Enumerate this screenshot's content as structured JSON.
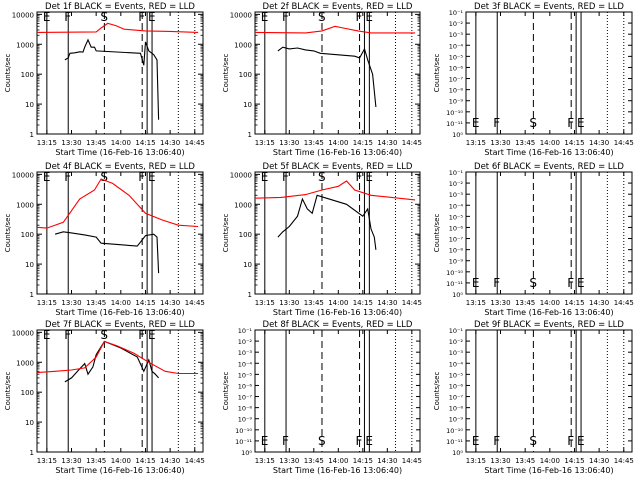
{
  "colors": {
    "events": "#000000",
    "lld": "#ff0000",
    "background": "#ffffff"
  },
  "shared": {
    "xlabel": "Start Time (16-Feb-16 13:06:40)",
    "ylabel": "Counts/sec",
    "x_range": [
      "13:09",
      "14:50"
    ],
    "x_ticks": [
      "13:15",
      "13:30",
      "13:45",
      "14:00",
      "14:15",
      "14:30",
      "14:45"
    ],
    "log_y_ticks": [
      "1",
      "10",
      "100",
      "1000",
      "10000"
    ],
    "log_y_range": [
      1,
      12000
    ],
    "linear_y_ticks": [
      "10⁻¹",
      "10⁻²",
      "10⁻³",
      "10⁻⁴",
      "10⁻⁵",
      "10⁻⁶",
      "10⁻⁷",
      "10⁻⁸",
      "10⁻⁹",
      "10⁻¹⁰",
      "10⁻¹¹",
      "10⁰"
    ],
    "markers": [
      {
        "label": "E",
        "time": "13:15",
        "style": "solid"
      },
      {
        "label": "F",
        "time": "13:28",
        "style": "solid"
      },
      {
        "label": "S",
        "time": "13:50",
        "style": "dashed"
      },
      {
        "label": "F",
        "time": "14:13",
        "style": "dashed"
      },
      {
        "label": "",
        "time": "14:16",
        "style": "solid"
      },
      {
        "label": "E",
        "time": "14:19",
        "style": "solid"
      }
    ],
    "dotted_lines": [
      "14:35",
      "14:45"
    ]
  },
  "chart_data": [
    {
      "type": "line",
      "title": "Det 1f BLACK = Events, RED = LLD",
      "yscale": "log",
      "series": [
        {
          "role": "events",
          "points": [
            [
              "13:26",
              300
            ],
            [
              "13:28",
              350
            ],
            [
              "13:29",
              500
            ],
            [
              "13:32",
              520
            ],
            [
              "13:35",
              560
            ],
            [
              "13:37",
              550
            ],
            [
              "13:38",
              800
            ],
            [
              "13:40",
              1400
            ],
            [
              "13:42",
              800
            ],
            [
              "13:44",
              800
            ],
            [
              "13:45",
              600
            ],
            [
              "14:12",
              500
            ],
            [
              "14:14",
              200
            ],
            [
              "14:15",
              1200
            ],
            [
              "14:17",
              600
            ],
            [
              "14:19",
              500
            ],
            [
              "14:20",
              450
            ],
            [
              "14:22",
              300
            ],
            [
              "14:23",
              3
            ]
          ]
        },
        {
          "role": "lld",
          "points": [
            [
              "13:09",
              2500
            ],
            [
              "13:45",
              2600
            ],
            [
              "13:48",
              3500
            ],
            [
              "13:52",
              5000
            ],
            [
              "13:57",
              4200
            ],
            [
              "14:02",
              3200
            ],
            [
              "14:15",
              2800
            ],
            [
              "14:30",
              2700
            ],
            [
              "14:47",
              2500
            ]
          ]
        }
      ]
    },
    {
      "type": "line",
      "title": "Det 2f BLACK = Events, RED = LLD",
      "yscale": "log",
      "series": [
        {
          "role": "events",
          "points": [
            [
              "13:23",
              600
            ],
            [
              "13:26",
              800
            ],
            [
              "13:30",
              700
            ],
            [
              "13:35",
              750
            ],
            [
              "13:40",
              650
            ],
            [
              "13:45",
              600
            ],
            [
              "13:49",
              500
            ],
            [
              "14:10",
              400
            ],
            [
              "14:13",
              350
            ],
            [
              "14:16",
              700
            ],
            [
              "14:18",
              300
            ],
            [
              "14:21",
              100
            ],
            [
              "14:23",
              8
            ]
          ]
        },
        {
          "role": "lld",
          "points": [
            [
              "13:09",
              2500
            ],
            [
              "13:40",
              2400
            ],
            [
              "13:50",
              2800
            ],
            [
              "13:58",
              4000
            ],
            [
              "14:03",
              3500
            ],
            [
              "14:12",
              2800
            ],
            [
              "14:20",
              2400
            ],
            [
              "14:47",
              2400
            ]
          ]
        }
      ]
    },
    {
      "type": "line",
      "title": "Det 3f BLACK = Events, RED = LLD",
      "yscale": "linear",
      "series": []
    },
    {
      "type": "line",
      "title": "Det 4f BLACK = Events, RED = LLD",
      "yscale": "log",
      "series": [
        {
          "role": "events",
          "points": [
            [
              "13:20",
              100
            ],
            [
              "13:25",
              120
            ],
            [
              "13:30",
              110
            ],
            [
              "13:38",
              95
            ],
            [
              "13:45",
              80
            ],
            [
              "13:48",
              50
            ],
            [
              "14:10",
              40
            ],
            [
              "14:15",
              90
            ],
            [
              "14:20",
              100
            ],
            [
              "14:22",
              80
            ],
            [
              "14:23",
              5
            ]
          ]
        },
        {
          "role": "lld",
          "points": [
            [
              "13:09",
              170
            ],
            [
              "13:15",
              160
            ],
            [
              "13:25",
              250
            ],
            [
              "13:35",
              1500
            ],
            [
              "13:44",
              3000
            ],
            [
              "13:48",
              7000
            ],
            [
              "13:55",
              5000
            ],
            [
              "14:05",
              2000
            ],
            [
              "14:15",
              500
            ],
            [
              "14:25",
              300
            ],
            [
              "14:35",
              200
            ],
            [
              "14:47",
              180
            ]
          ]
        }
      ]
    },
    {
      "type": "line",
      "title": "Det 5f BLACK = Events, RED = LLD",
      "yscale": "log",
      "series": [
        {
          "role": "events",
          "points": [
            [
              "13:23",
              80
            ],
            [
              "13:26",
              120
            ],
            [
              "13:30",
              180
            ],
            [
              "13:35",
              400
            ],
            [
              "13:38",
              1500
            ],
            [
              "13:41",
              700
            ],
            [
              "13:44",
              500
            ],
            [
              "13:47",
              2000
            ],
            [
              "14:05",
              1000
            ],
            [
              "14:15",
              400
            ],
            [
              "14:18",
              700
            ],
            [
              "14:20",
              150
            ],
            [
              "14:22",
              80
            ],
            [
              "14:23",
              30
            ]
          ]
        },
        {
          "role": "lld",
          "points": [
            [
              "13:09",
              1600
            ],
            [
              "13:25",
              1700
            ],
            [
              "13:40",
              2100
            ],
            [
              "13:50",
              3000
            ],
            [
              "14:00",
              4000
            ],
            [
              "14:05",
              6000
            ],
            [
              "14:10",
              3000
            ],
            [
              "14:20",
              2000
            ],
            [
              "14:47",
              1400
            ]
          ]
        }
      ]
    },
    {
      "type": "line",
      "title": "Det 6f BLACK = Events, RED = LLD",
      "yscale": "linear",
      "series": []
    },
    {
      "type": "line",
      "title": "Det 7f BLACK = Events, RED = LLD",
      "yscale": "log",
      "series": [
        {
          "role": "events",
          "points": [
            [
              "13:26",
              220
            ],
            [
              "13:30",
              300
            ],
            [
              "13:35",
              600
            ],
            [
              "13:38",
              900
            ],
            [
              "13:40",
              400
            ],
            [
              "13:43",
              700
            ],
            [
              "13:45",
              1800
            ],
            [
              "13:50",
              5000
            ],
            [
              "14:00",
              3000
            ],
            [
              "14:10",
              1500
            ],
            [
              "14:14",
              500
            ],
            [
              "14:17",
              1200
            ],
            [
              "14:19",
              500
            ],
            [
              "14:21",
              400
            ],
            [
              "14:23",
              300
            ]
          ]
        },
        {
          "role": "lld",
          "points": [
            [
              "13:09",
              450
            ],
            [
              "13:20",
              500
            ],
            [
              "13:30",
              550
            ],
            [
              "13:38",
              650
            ],
            [
              "13:45",
              1500
            ],
            [
              "13:50",
              5000
            ],
            [
              "13:58",
              3500
            ],
            [
              "14:08",
              2000
            ],
            [
              "14:17",
              1000
            ],
            [
              "14:27",
              500
            ],
            [
              "14:35",
              420
            ],
            [
              "14:47",
              420
            ]
          ]
        }
      ]
    },
    {
      "type": "line",
      "title": "Det 8f BLACK = Events, RED = LLD",
      "yscale": "linear",
      "series": []
    },
    {
      "type": "line",
      "title": "Det 9f BLACK = Events, RED = LLD",
      "yscale": "linear",
      "series": []
    }
  ]
}
